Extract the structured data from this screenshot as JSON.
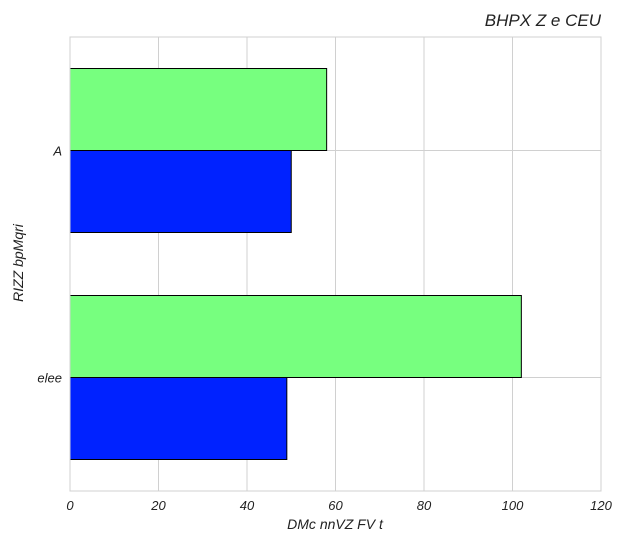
{
  "chart_data": {
    "type": "bar",
    "orientation": "horizontal",
    "title": "BHPX Z  e CEU",
    "xlabel": "DMc nnVZ FV t",
    "ylabel": "RIZZ bpMqri",
    "categories": [
      "A",
      "elee"
    ],
    "xlim": [
      0,
      120
    ],
    "xticks": [
      0,
      20,
      40,
      60,
      80,
      100,
      120
    ],
    "grid": true,
    "legend": "none",
    "series": [
      {
        "color": "#0022ff",
        "values": [
          50,
          49
        ]
      },
      {
        "color": "#77ff7f",
        "values": [
          58,
          102
        ]
      }
    ]
  }
}
